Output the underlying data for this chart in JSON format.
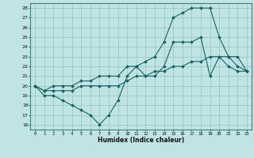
{
  "title": "",
  "xlabel": "Humidex (Indice chaleur)",
  "ylabel": "",
  "background_color": "#c0e4e4",
  "grid_color": "#90c4c4",
  "line_color": "#1a6060",
  "xlim": [
    -0.5,
    23.5
  ],
  "ylim": [
    15.5,
    28.5
  ],
  "xticks": [
    0,
    1,
    2,
    3,
    4,
    5,
    6,
    7,
    8,
    9,
    10,
    11,
    12,
    13,
    14,
    15,
    16,
    17,
    18,
    19,
    20,
    21,
    22,
    23
  ],
  "yticks": [
    16,
    17,
    18,
    19,
    20,
    21,
    22,
    23,
    24,
    25,
    26,
    27,
    28
  ],
  "line1_x": [
    0,
    1,
    2,
    3,
    4,
    5,
    6,
    7,
    8,
    9,
    10,
    11,
    12,
    13,
    14,
    15,
    16,
    17,
    18,
    19,
    20,
    21,
    22,
    23
  ],
  "line1_y": [
    20,
    19,
    19,
    18.5,
    18,
    17.5,
    17,
    16,
    17,
    18.5,
    21,
    22,
    21,
    21,
    22,
    24.5,
    24.5,
    24.5,
    25,
    21,
    23,
    22,
    21.5,
    21.5
  ],
  "line2_x": [
    0,
    1,
    2,
    3,
    4,
    5,
    6,
    7,
    8,
    9,
    10,
    11,
    12,
    13,
    14,
    15,
    16,
    17,
    18,
    19,
    20,
    21,
    22,
    23
  ],
  "line2_y": [
    20,
    19.5,
    19.5,
    19.5,
    19.5,
    20,
    20,
    20,
    20,
    20,
    20.5,
    21,
    21,
    21.5,
    21.5,
    22,
    22,
    22.5,
    22.5,
    23,
    23,
    23,
    23,
    21.5
  ],
  "line3_x": [
    0,
    1,
    2,
    3,
    4,
    5,
    6,
    7,
    8,
    9,
    10,
    11,
    12,
    13,
    14,
    15,
    16,
    17,
    18,
    19,
    20,
    21,
    22,
    23
  ],
  "line3_y": [
    20,
    19.5,
    20,
    20,
    20,
    20.5,
    20.5,
    21,
    21,
    21,
    22,
    22,
    22.5,
    23,
    24.5,
    27,
    27.5,
    28,
    28,
    28,
    25,
    23,
    22,
    21.5
  ]
}
